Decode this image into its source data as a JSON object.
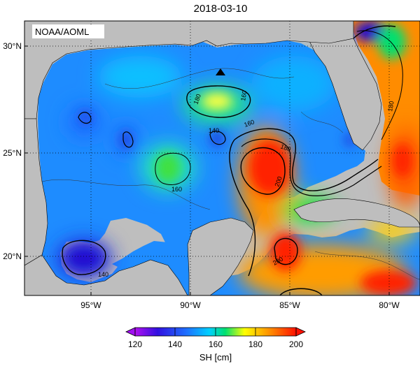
{
  "title": "2018-03-10",
  "credit": "NOAA/AOML",
  "map": {
    "lat_ticks": [
      "30°N",
      "25°N",
      "20°N"
    ],
    "lon_ticks": [
      "95°W",
      "90°W",
      "85°W",
      "80°W"
    ],
    "lat_range": [
      18,
      31
    ],
    "lon_range": [
      -98.5,
      -78
    ],
    "contour_labels": [
      "180",
      "160",
      "140",
      "160",
      "180",
      "200",
      "200",
      "180",
      "140",
      "160"
    ],
    "marker": "triangle-marker"
  },
  "colorbar": {
    "ticks": [
      "120",
      "140",
      "160",
      "180",
      "200"
    ],
    "label": "SH [cm]",
    "range": [
      120,
      200
    ],
    "colors": [
      "#a020f0",
      "#2020e0",
      "#1e90ff",
      "#00e5ff",
      "#00e070",
      "#ffff00",
      "#ff9000",
      "#ff1a00"
    ]
  }
}
